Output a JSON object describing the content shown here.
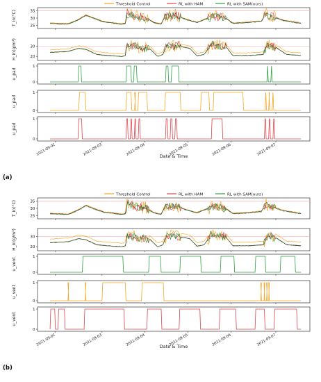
{
  "chart_data": [
    {
      "type": "line",
      "panel": "a",
      "caption": "(a)",
      "legend": [
        "Threshold Control",
        "RL with HAM",
        "RL with SAM(ours)"
      ],
      "legend_placement": "top-center",
      "series_colors": {
        "Threshold Control": "#f5a623",
        "RL with HAM": "#e0434a",
        "RL with SAM(ours)": "#2ea043"
      },
      "x_ticks": [
        "2021-09-02",
        "2021-09-03",
        "2021-09-04",
        "2021-09-05",
        "2021-09-06",
        "2021-09-07"
      ],
      "xlabel": "Date & Time",
      "threshold_line_color": "#f4a6a6",
      "subplots": [
        {
          "ylabel": "T_in(°C)",
          "yticks": [
            "25",
            "30",
            "35"
          ],
          "ylim": [
            23,
            37
          ],
          "threshold": 35
        },
        {
          "ylabel": "H_in(g/m³)",
          "yticks": [
            "20",
            "30"
          ],
          "ylim": [
            16,
            38
          ],
          "threshold": 30
        },
        {
          "ylabel": "u_pad",
          "series": "RL with SAM(ours)",
          "yticks": [
            "0",
            "1"
          ],
          "on_days": [
            [
              0.78,
              0.88
            ],
            [
              2.12,
              2.27
            ],
            [
              2.33,
              2.43
            ],
            [
              3.22,
              3.31
            ],
            [
              3.38,
              3.6
            ],
            [
              6.05,
              6.09
            ],
            [
              6.16,
              6.2
            ]
          ]
        },
        {
          "ylabel": "u_pad",
          "series": "Threshold Control",
          "yticks": [
            "0",
            "1"
          ],
          "on_days": [
            [
              0.8,
              1.0
            ],
            [
              2.12,
              2.28
            ],
            [
              2.36,
              2.38
            ],
            [
              2.45,
              2.72
            ],
            [
              3.2,
              3.65
            ],
            [
              4.2,
              4.45
            ],
            [
              4.55,
              5.4
            ],
            [
              6.0,
              6.04
            ],
            [
              6.1,
              6.13
            ],
            [
              6.2,
              6.24
            ]
          ]
        },
        {
          "ylabel": "u_pad",
          "series": "RL with HAM",
          "yticks": [
            "0",
            "1"
          ],
          "on_days": [
            [
              0.78,
              0.9
            ],
            [
              2.12,
              2.18
            ],
            [
              2.24,
              2.29
            ],
            [
              2.35,
              2.4
            ],
            [
              2.46,
              2.52
            ],
            [
              3.22,
              3.29
            ],
            [
              3.35,
              3.42
            ],
            [
              3.48,
              3.55
            ],
            [
              4.5,
              4.82
            ],
            [
              5.98,
              6.03
            ],
            [
              6.1,
              6.15
            ],
            [
              6.22,
              6.27
            ]
          ]
        }
      ]
    },
    {
      "type": "line",
      "panel": "b",
      "caption": "(b)",
      "legend": [
        "Threshold Control",
        "RL with HAM",
        "RL with SAM(ours)"
      ],
      "legend_placement": "top-center",
      "series_colors": {
        "Threshold Control": "#f5a623",
        "RL with HAM": "#e0434a",
        "RL with SAM(ours)": "#2ea043"
      },
      "x_ticks": [
        "2021-09-02",
        "2021-09-03",
        "2021-09-04",
        "2021-09-05",
        "2021-09-06",
        "2021-09-07"
      ],
      "xlabel": "Date & Time",
      "threshold_line_color": "#f4a6a6",
      "subplots": [
        {
          "ylabel": "T_in(°C)",
          "yticks": [
            "25",
            "30",
            "35"
          ],
          "ylim": [
            23,
            37
          ],
          "threshold": 35
        },
        {
          "ylabel": "H_in(g/m³)",
          "yticks": [
            "20",
            "30"
          ],
          "ylim": [
            16,
            38
          ],
          "threshold": 30
        },
        {
          "ylabel": "u_vent",
          "series": "RL with SAM(ours)",
          "yticks": [
            "0",
            "1"
          ],
          "on_days": [
            [
              0.9,
              2.05
            ],
            [
              2.75,
              3.1
            ],
            [
              3.62,
              4.22
            ],
            [
              4.75,
              5.15
            ],
            [
              5.72,
              6.02
            ],
            [
              6.42,
              6.85
            ]
          ]
        },
        {
          "ylabel": "u_vent",
          "series": "Threshold Control",
          "yticks": [
            "0",
            "1"
          ],
          "on_days": [
            [
              0.5,
              0.52
            ],
            [
              0.98,
              1.0
            ],
            [
              1.45,
              2.12
            ],
            [
              2.55,
              3.18
            ],
            [
              5.88,
              5.9
            ],
            [
              5.97,
              5.99
            ],
            [
              6.04,
              6.06
            ],
            [
              6.1,
              6.12
            ]
          ]
        },
        {
          "ylabel": "u_vent",
          "series": "RL with HAM",
          "yticks": [
            "0",
            "1"
          ],
          "on_days": [
            [
              0.0,
              0.15
            ],
            [
              0.22,
              0.42
            ],
            [
              0.95,
              2.08
            ],
            [
              2.7,
              3.12
            ],
            [
              3.6,
              4.2
            ],
            [
              4.72,
              5.2
            ],
            [
              5.72,
              6.0
            ],
            [
              6.25,
              6.9
            ]
          ]
        }
      ]
    }
  ]
}
